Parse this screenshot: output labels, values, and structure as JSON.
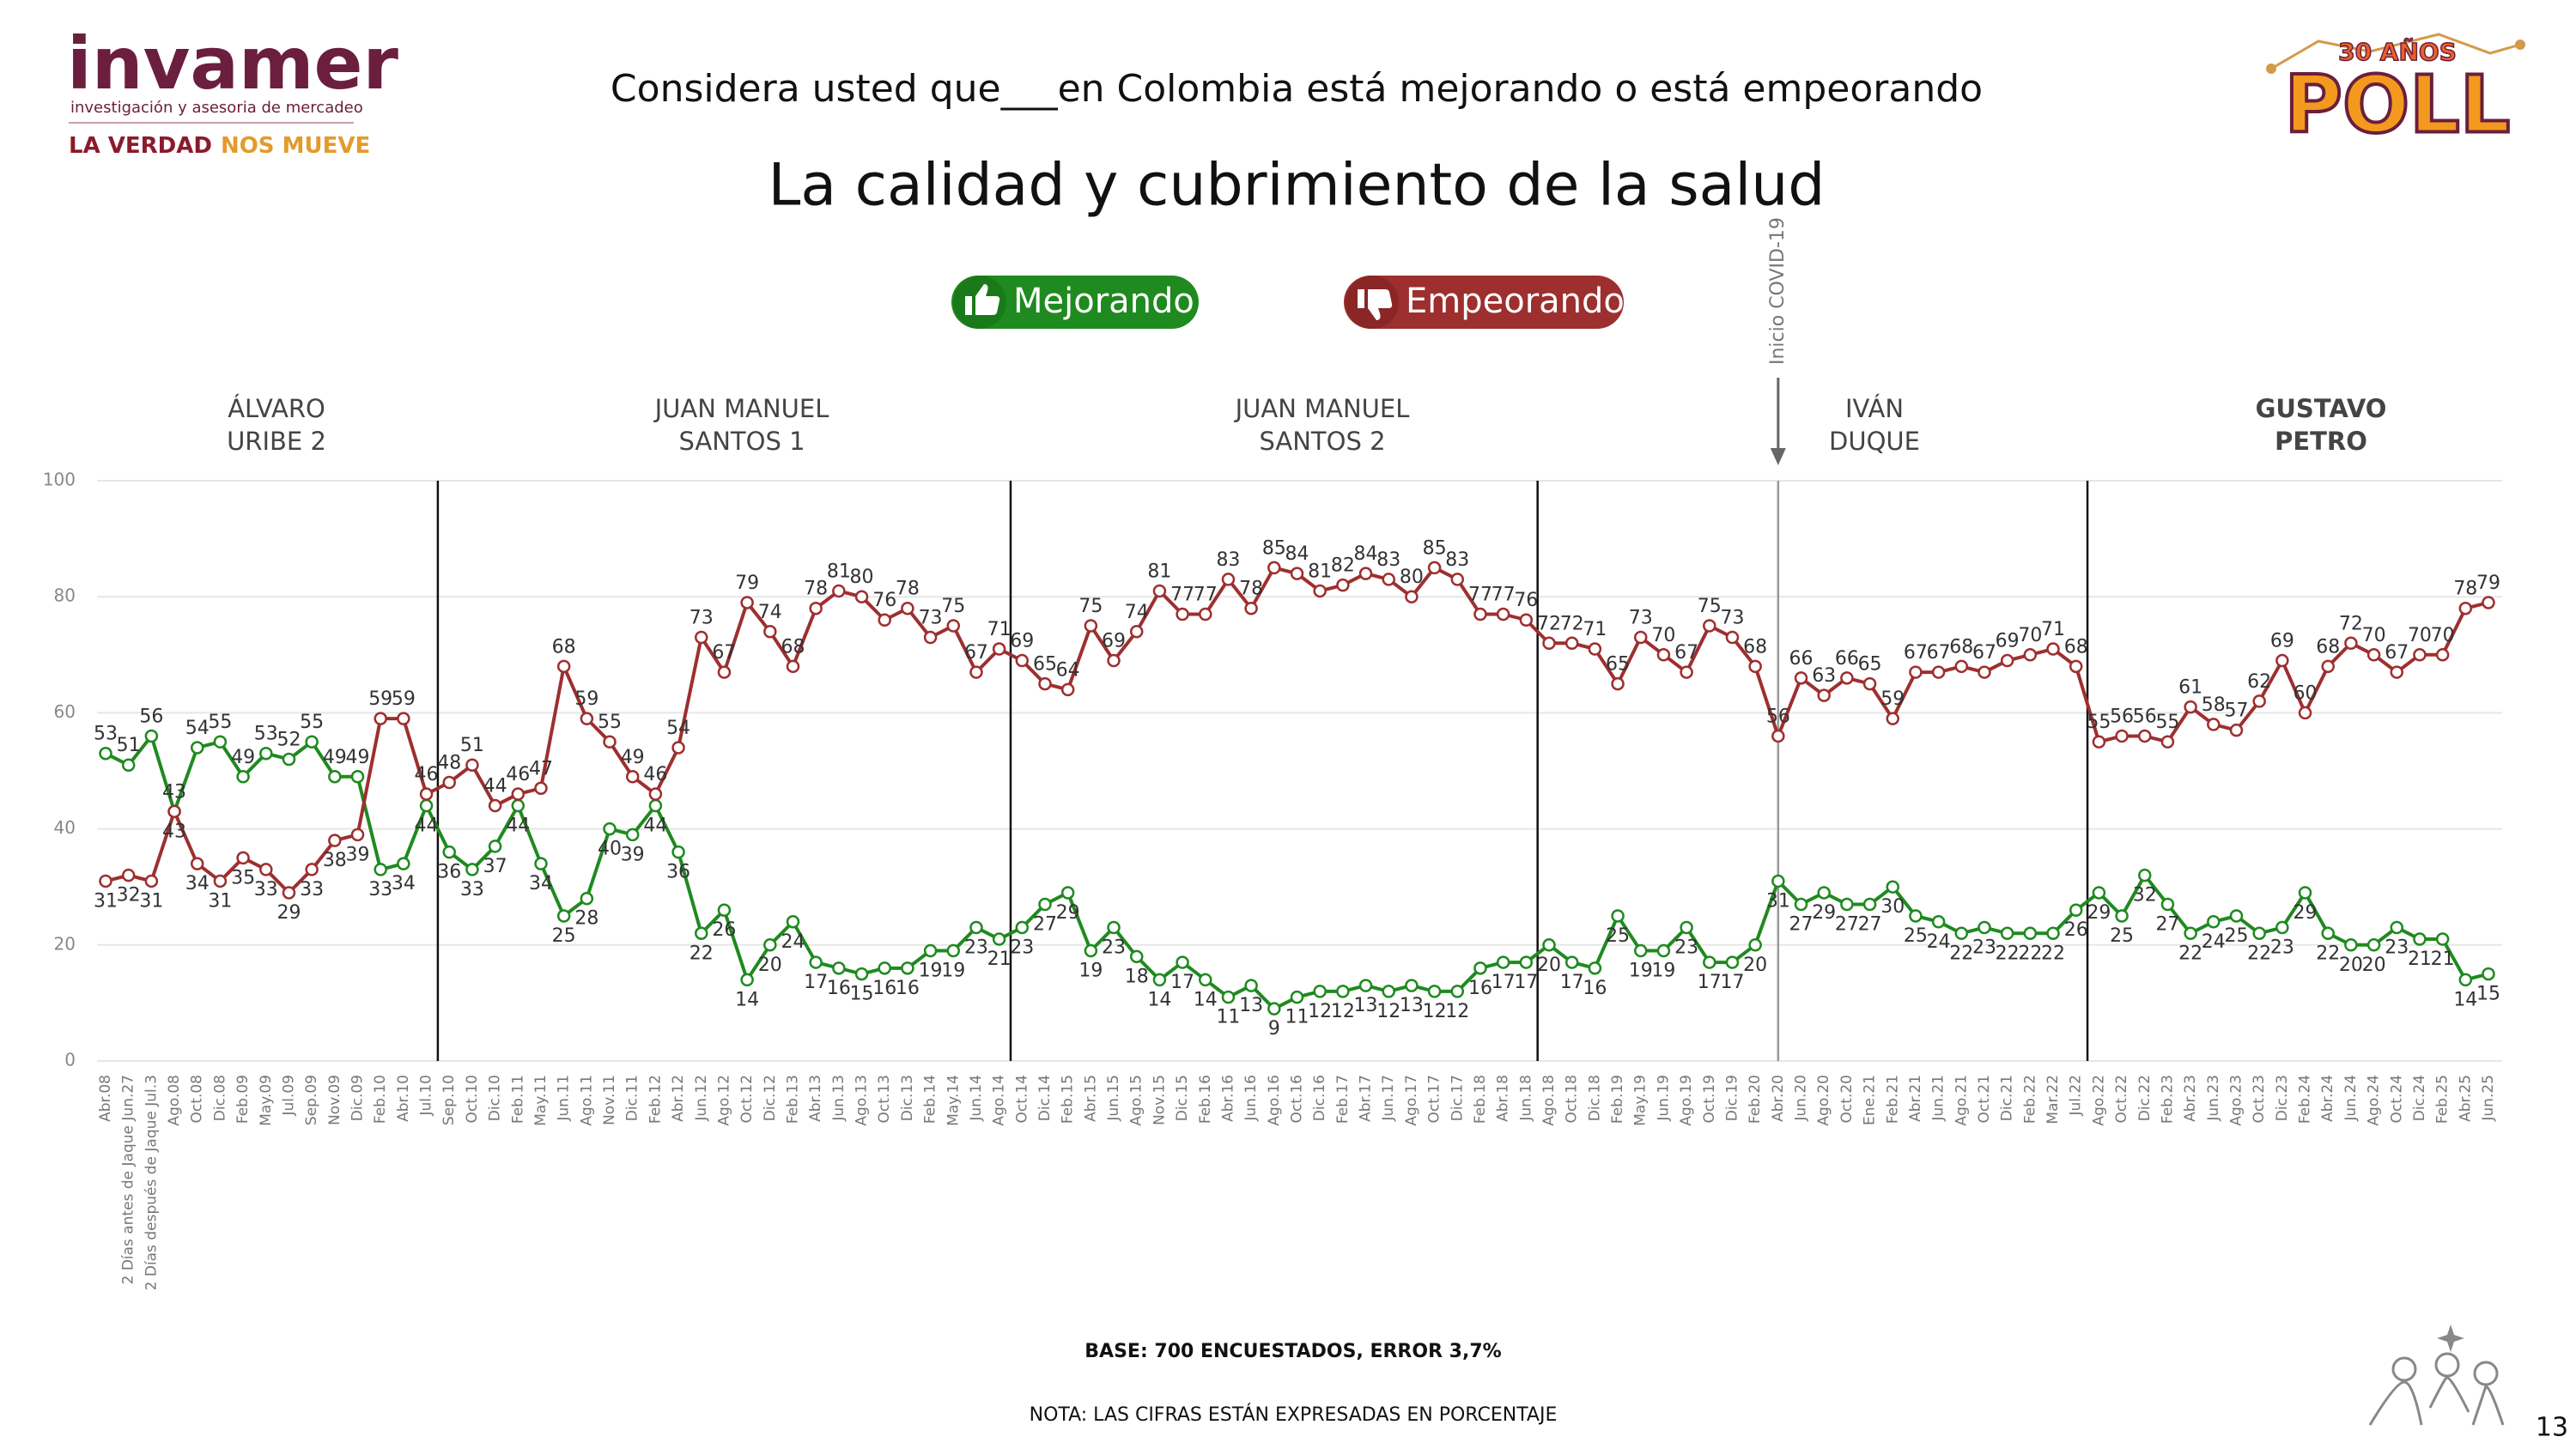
{
  "header": {
    "logo": "invamer",
    "logo_sub": "investigación y asesoria de mercadeo",
    "tagline_1": "LA VERDAD",
    "tagline_2": "NOS MUEVE",
    "poll_years": "30 AÑOS",
    "poll": "POLL"
  },
  "footer": {
    "base": "BASE: 700 ENCUESTADOS, ERROR 3,7%",
    "note": "NOTA: LAS CIFRAS ESTÁN EXPRESADAS EN PORCENTAJE",
    "page": "13"
  },
  "chart_data": {
    "type": "line",
    "subtitle": "Considera usted que___en Colombia está mejorando o está empeorando",
    "title": "La calidad y cubrimiento de la salud",
    "annotation": "Inicio COVID-19",
    "periods": [
      [
        "ÁLVARO",
        "URIBE 2"
      ],
      [
        "JUAN MANUEL",
        "SANTOS 1"
      ],
      [
        "JUAN MANUEL",
        "SANTOS 2"
      ],
      [
        "IVÁN",
        "DUQUE"
      ],
      [
        "GUSTAVO",
        "PETRO"
      ]
    ],
    "categories": [
      "Abr.08",
      "2 Días antes de Jaque Jun.27",
      "2 Días después de Jaque Jul.3",
      "Ago.08",
      "Oct.08",
      "Dic.08",
      "Feb.09",
      "May.09",
      "Jul.09",
      "Sep.09",
      "Nov.09",
      "Dic.09",
      "Feb.10",
      "Abr.10",
      "Jul.10",
      "Sep.10",
      "Oct.10",
      "Dic.10",
      "Feb.11",
      "May.11",
      "Jun.11",
      "Ago.11",
      "Nov.11",
      "Dic.11",
      "Feb.12",
      "Abr.12",
      "Jun.12",
      "Ago.12",
      "Oct.12",
      "Dic.12",
      "Feb.13",
      "Abr.13",
      "Jun.13",
      "Ago.13",
      "Oct.13",
      "Dic.13",
      "Feb.14",
      "May.14",
      "Jun.14",
      "Ago.14",
      "Oct.14",
      "Dic.14",
      "Feb.15",
      "Abr.15",
      "Jun.15",
      "Ago.15",
      "Nov.15",
      "Dic.15",
      "Feb.16",
      "Abr.16",
      "Jun.16",
      "Ago.16",
      "Oct.16",
      "Dic.16",
      "Feb.17",
      "Abr.17",
      "Jun.17",
      "Ago.17",
      "Oct.17",
      "Dic.17",
      "Feb.18",
      "Abr.18",
      "Jun.18",
      "Ago.18",
      "Oct.18",
      "Dic.18",
      "Feb.19",
      "May.19",
      "Jun.19",
      "Ago.19",
      "Oct.19",
      "Dic.19",
      "Feb.20",
      "Abr.20",
      "Jun.20",
      "Ago.20",
      "Oct.20",
      "Ene.21",
      "Feb.21",
      "Abr.21",
      "Jun.21",
      "Ago.21",
      "Oct.21",
      "Dic.21",
      "Feb.22",
      "Mar.22",
      "Jul.22",
      "Ago.22",
      "Oct.22",
      "Dic.22",
      "Feb.23",
      "Abr.23",
      "Jun.23",
      "Ago.23",
      "Oct.23",
      "Dic.23",
      "Feb.24",
      "Abr.24",
      "Jun.24",
      "Ago.24",
      "Oct.24",
      "Dic.24",
      "Feb.25",
      "Abr.25",
      "Jun.25"
    ],
    "series": [
      {
        "name": "Mejorando",
        "color": "#1f8a1f",
        "values": [
          53,
          51,
          56,
          43,
          54,
          55,
          49,
          53,
          52,
          55,
          49,
          49,
          33,
          34,
          44,
          36,
          33,
          37,
          44,
          34,
          25,
          28,
          40,
          39,
          44,
          36,
          22,
          26,
          14,
          20,
          24,
          17,
          16,
          15,
          16,
          16,
          19,
          19,
          23,
          21,
          23,
          27,
          29,
          19,
          23,
          18,
          14,
          17,
          14,
          11,
          13,
          9,
          11,
          12,
          12,
          13,
          12,
          13,
          12,
          12,
          16,
          17,
          17,
          20,
          17,
          16,
          25,
          19,
          19,
          23,
          17,
          17,
          20,
          31,
          27,
          29,
          27,
          27,
          30,
          25,
          24,
          22,
          23,
          22,
          22,
          22,
          26,
          29,
          25,
          32,
          27,
          22,
          24,
          25,
          22,
          23,
          29,
          22,
          20,
          20,
          23,
          21,
          21,
          14,
          15
        ]
      },
      {
        "name": "Empeorando",
        "color": "#9e2f2f",
        "values": [
          31,
          32,
          31,
          43,
          34,
          31,
          35,
          33,
          29,
          33,
          38,
          39,
          59,
          59,
          46,
          48,
          51,
          44,
          46,
          47,
          68,
          59,
          55,
          49,
          46,
          54,
          73,
          67,
          79,
          74,
          68,
          78,
          81,
          80,
          76,
          78,
          73,
          75,
          67,
          71,
          69,
          65,
          64,
          75,
          69,
          74,
          81,
          77,
          77,
          83,
          78,
          85,
          84,
          81,
          82,
          84,
          83,
          80,
          85,
          83,
          77,
          77,
          76,
          72,
          72,
          71,
          65,
          73,
          70,
          67,
          75,
          73,
          68,
          56,
          66,
          63,
          66,
          65,
          59,
          67,
          67,
          68,
          67,
          69,
          70,
          71,
          68,
          55,
          56,
          56,
          55,
          61,
          58,
          57,
          62,
          69,
          60,
          68,
          72,
          70,
          67,
          70,
          70,
          78,
          79
        ]
      }
    ],
    "ylim": [
      0,
      100
    ],
    "yticks": [
      0,
      20,
      40,
      60,
      80,
      100
    ],
    "grid": true
  }
}
